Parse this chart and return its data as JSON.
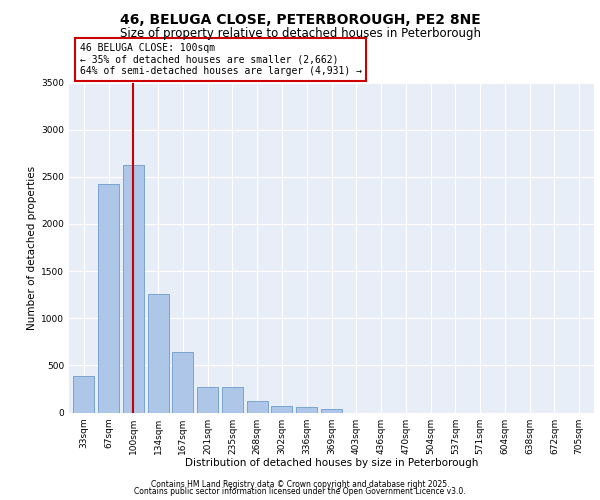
{
  "title": "46, BELUGA CLOSE, PETERBOROUGH, PE2 8NE",
  "subtitle": "Size of property relative to detached houses in Peterborough",
  "xlabel": "Distribution of detached houses by size in Peterborough",
  "ylabel": "Number of detached properties",
  "categories": [
    "33sqm",
    "67sqm",
    "100sqm",
    "134sqm",
    "167sqm",
    "201sqm",
    "235sqm",
    "268sqm",
    "302sqm",
    "336sqm",
    "369sqm",
    "403sqm",
    "436sqm",
    "470sqm",
    "504sqm",
    "537sqm",
    "571sqm",
    "604sqm",
    "638sqm",
    "672sqm",
    "705sqm"
  ],
  "values": [
    390,
    2420,
    2620,
    1260,
    640,
    270,
    270,
    120,
    65,
    55,
    40,
    0,
    0,
    0,
    0,
    0,
    0,
    0,
    0,
    0,
    0
  ],
  "bar_color": "#aec6e8",
  "bar_edge_color": "#5a8fc4",
  "highlight_bar_index": 2,
  "highlight_line_color": "#cc0000",
  "annotation_text": "46 BELUGA CLOSE: 100sqm\n← 35% of detached houses are smaller (2,662)\n64% of semi-detached houses are larger (4,931) →",
  "annotation_box_color": "#cc0000",
  "ylim": [
    0,
    3500
  ],
  "yticks": [
    0,
    500,
    1000,
    1500,
    2000,
    2500,
    3000,
    3500
  ],
  "background_color": "#e8eef8",
  "plot_background_color": "#e8eef8",
  "footer_line1": "Contains HM Land Registry data © Crown copyright and database right 2025.",
  "footer_line2": "Contains public sector information licensed under the Open Government Licence v3.0.",
  "title_fontsize": 10,
  "subtitle_fontsize": 8.5,
  "axis_label_fontsize": 7.5,
  "tick_fontsize": 6.5,
  "annotation_fontsize": 7,
  "footer_fontsize": 5.5,
  "fig_width": 6.0,
  "fig_height": 5.0,
  "fig_dpi": 100
}
